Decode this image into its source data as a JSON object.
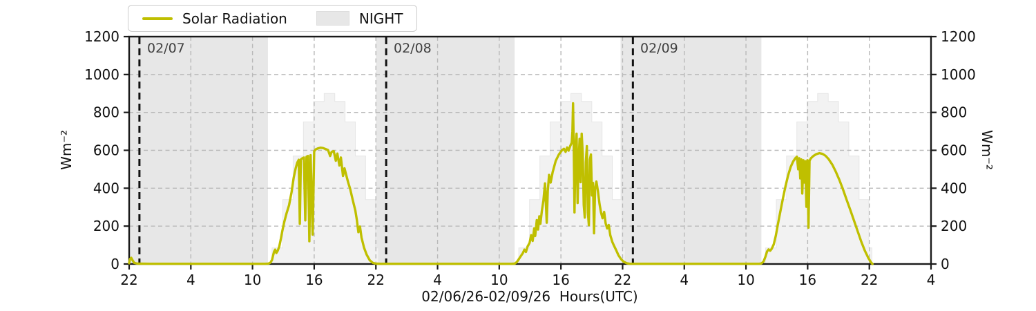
{
  "legend": {
    "solar_label": "Solar Radiation",
    "night_label": "NIGHT"
  },
  "axes": {
    "left_label": "Wm⁻²",
    "right_label": "Wm⁻²",
    "x_label": "02/06/26-02/09/26  Hours(UTC)"
  },
  "colors": {
    "line": "#bfbf00",
    "night": "#e7e7e7",
    "clear_sky": "#f2f2f2",
    "clear_sky_edge": "#e6e6e6",
    "grid": "#b8b8b8",
    "date_line": "#111111",
    "spine": "#1a1a1a",
    "tick_text": "#111111",
    "day_label_text": "#3f3f3f"
  },
  "chart_data": {
    "type": "line",
    "title": "",
    "xlabel": "02/06/26-02/09/26  Hours(UTC)",
    "ylabel": "Wm⁻²",
    "legend_position": "top-left-above-axes",
    "grid": true,
    "x_axis": {
      "start": "22:00 UTC on 02/06/26",
      "total_hours": 78,
      "tick_step_hours": 6,
      "tick_labels": [
        "22",
        "4",
        "10",
        "16",
        "22",
        "4",
        "10",
        "16",
        "22",
        "4",
        "10",
        "16",
        "22",
        "4"
      ]
    },
    "y_axis": {
      "min": 0,
      "max": 1200,
      "ticks": [
        0,
        200,
        400,
        600,
        800,
        1000,
        1200
      ],
      "mirrored_right": true
    },
    "night_regions_hours": [
      [
        0,
        13.5
      ],
      [
        24.0,
        37.5
      ],
      [
        47.8,
        61.5
      ]
    ],
    "date_lines": [
      {
        "t": 1.0,
        "label": "02/07"
      },
      {
        "t": 25.0,
        "label": "02/08"
      },
      {
        "t": 49.0,
        "label": "02/09"
      }
    ],
    "clear_sky_steps": {
      "day_offsets": [
        0,
        24,
        48
      ],
      "edges_rel_hours": [
        13.9,
        14.95,
        15.95,
        16.95,
        17.95,
        18.97,
        20.0,
        21.0,
        22.0,
        23.0,
        23.95,
        24.25
      ],
      "values": [
        85,
        340,
        570,
        750,
        858,
        900,
        858,
        750,
        570,
        340,
        85
      ]
    },
    "series": [
      {
        "name": "Solar Radiation",
        "color": "#bfbf00",
        "units": "Wm⁻²",
        "points": [
          [
            0,
            4
          ],
          [
            0.08,
            26
          ],
          [
            0.2,
            33
          ],
          [
            0.35,
            18
          ],
          [
            0.5,
            6
          ],
          [
            0.8,
            2
          ],
          [
            2,
            1
          ],
          [
            4,
            1
          ],
          [
            6,
            1
          ],
          [
            8,
            1
          ],
          [
            10,
            1
          ],
          [
            12,
            1
          ],
          [
            13.2,
            1
          ],
          [
            13.55,
            2
          ],
          [
            13.75,
            8
          ],
          [
            13.9,
            22
          ],
          [
            14.0,
            45
          ],
          [
            14.1,
            66
          ],
          [
            14.2,
            76
          ],
          [
            14.32,
            58
          ],
          [
            14.45,
            70
          ],
          [
            14.6,
            92
          ],
          [
            14.75,
            130
          ],
          [
            14.9,
            175
          ],
          [
            15.1,
            225
          ],
          [
            15.3,
            265
          ],
          [
            15.55,
            310
          ],
          [
            15.8,
            380
          ],
          [
            16.0,
            455
          ],
          [
            16.2,
            505
          ],
          [
            16.35,
            535
          ],
          [
            16.5,
            550
          ],
          [
            16.6,
            212
          ],
          [
            16.7,
            552
          ],
          [
            16.85,
            558
          ],
          [
            17.0,
            562
          ],
          [
            17.13,
            230
          ],
          [
            17.25,
            566
          ],
          [
            17.4,
            570
          ],
          [
            17.53,
            120
          ],
          [
            17.65,
            574
          ],
          [
            17.85,
            155
          ],
          [
            18.0,
            595
          ],
          [
            18.15,
            605
          ],
          [
            18.35,
            610
          ],
          [
            18.6,
            614
          ],
          [
            18.85,
            612
          ],
          [
            19.1,
            607
          ],
          [
            19.35,
            601
          ],
          [
            19.55,
            570
          ],
          [
            19.7,
            592
          ],
          [
            19.9,
            596
          ],
          [
            20.1,
            545
          ],
          [
            20.25,
            583
          ],
          [
            20.45,
            520
          ],
          [
            20.6,
            562
          ],
          [
            20.8,
            465
          ],
          [
            20.95,
            505
          ],
          [
            21.1,
            472
          ],
          [
            21.3,
            432
          ],
          [
            21.5,
            396
          ],
          [
            21.75,
            338
          ],
          [
            22.0,
            282
          ],
          [
            22.15,
            232
          ],
          [
            22.3,
            168
          ],
          [
            22.45,
            198
          ],
          [
            22.6,
            140
          ],
          [
            22.85,
            86
          ],
          [
            23.1,
            50
          ],
          [
            23.4,
            20
          ],
          [
            23.7,
            6
          ],
          [
            24.0,
            2
          ],
          [
            24.5,
            1
          ],
          [
            26,
            1
          ],
          [
            28,
            1
          ],
          [
            30,
            1
          ],
          [
            32,
            1
          ],
          [
            34,
            1
          ],
          [
            36,
            1
          ],
          [
            37.2,
            1
          ],
          [
            37.5,
            2
          ],
          [
            37.7,
            10
          ],
          [
            37.9,
            25
          ],
          [
            38.1,
            42
          ],
          [
            38.3,
            58
          ],
          [
            38.45,
            76
          ],
          [
            38.6,
            64
          ],
          [
            38.75,
            92
          ],
          [
            38.95,
            112
          ],
          [
            39.1,
            152
          ],
          [
            39.25,
            122
          ],
          [
            39.4,
            188
          ],
          [
            39.5,
            148
          ],
          [
            39.65,
            232
          ],
          [
            39.78,
            182
          ],
          [
            39.9,
            252
          ],
          [
            40.0,
            212
          ],
          [
            40.15,
            282
          ],
          [
            40.3,
            335
          ],
          [
            40.45,
            425
          ],
          [
            40.55,
            302
          ],
          [
            40.62,
            218
          ],
          [
            40.72,
            385
          ],
          [
            40.85,
            470
          ],
          [
            41.0,
            430
          ],
          [
            41.2,
            485
          ],
          [
            41.5,
            545
          ],
          [
            41.8,
            578
          ],
          [
            42.1,
            600
          ],
          [
            42.3,
            608
          ],
          [
            42.45,
            592
          ],
          [
            42.6,
            615
          ],
          [
            42.75,
            598
          ],
          [
            42.9,
            622
          ],
          [
            43.05,
            640
          ],
          [
            43.12,
            700
          ],
          [
            43.18,
            848
          ],
          [
            43.25,
            600
          ],
          [
            43.32,
            272
          ],
          [
            43.42,
            618
          ],
          [
            43.52,
            688
          ],
          [
            43.62,
            322
          ],
          [
            43.72,
            545
          ],
          [
            43.82,
            660
          ],
          [
            43.92,
            432
          ],
          [
            44.02,
            688
          ],
          [
            44.12,
            582
          ],
          [
            44.22,
            312
          ],
          [
            44.32,
            245
          ],
          [
            44.42,
            538
          ],
          [
            44.52,
            622
          ],
          [
            44.62,
            272
          ],
          [
            44.72,
            205
          ],
          [
            44.82,
            552
          ],
          [
            44.92,
            578
          ],
          [
            45.02,
            362
          ],
          [
            45.12,
            428
          ],
          [
            45.22,
            162
          ],
          [
            45.32,
            395
          ],
          [
            45.45,
            435
          ],
          [
            45.6,
            385
          ],
          [
            45.75,
            318
          ],
          [
            45.9,
            272
          ],
          [
            46.05,
            242
          ],
          [
            46.2,
            275
          ],
          [
            46.35,
            215
          ],
          [
            46.5,
            188
          ],
          [
            46.65,
            206
          ],
          [
            46.8,
            152
          ],
          [
            47.0,
            116
          ],
          [
            47.2,
            92
          ],
          [
            47.4,
            70
          ],
          [
            47.6,
            46
          ],
          [
            47.85,
            26
          ],
          [
            48.1,
            12
          ],
          [
            48.4,
            4
          ],
          [
            48.7,
            1
          ],
          [
            49.5,
            1
          ],
          [
            51,
            1
          ],
          [
            53,
            1
          ],
          [
            55,
            1
          ],
          [
            57,
            1
          ],
          [
            59,
            1
          ],
          [
            60.8,
            1
          ],
          [
            61.3,
            1
          ],
          [
            61.5,
            3
          ],
          [
            61.7,
            12
          ],
          [
            61.9,
            40
          ],
          [
            62.05,
            66
          ],
          [
            62.2,
            77
          ],
          [
            62.35,
            70
          ],
          [
            62.5,
            80
          ],
          [
            62.7,
            104
          ],
          [
            62.9,
            148
          ],
          [
            63.1,
            208
          ],
          [
            63.35,
            278
          ],
          [
            63.6,
            348
          ],
          [
            63.85,
            412
          ],
          [
            64.1,
            468
          ],
          [
            64.35,
            512
          ],
          [
            64.6,
            542
          ],
          [
            64.8,
            558
          ],
          [
            64.95,
            566
          ],
          [
            65.08,
            500
          ],
          [
            65.18,
            558
          ],
          [
            65.28,
            452
          ],
          [
            65.38,
            552
          ],
          [
            65.48,
            372
          ],
          [
            65.58,
            548
          ],
          [
            65.68,
            430
          ],
          [
            65.78,
            542
          ],
          [
            65.88,
            302
          ],
          [
            65.98,
            548
          ],
          [
            66.08,
            192
          ],
          [
            66.18,
            545
          ],
          [
            66.32,
            558
          ],
          [
            66.55,
            570
          ],
          [
            66.85,
            580
          ],
          [
            67.15,
            585
          ],
          [
            67.45,
            581
          ],
          [
            67.75,
            571
          ],
          [
            68.05,
            553
          ],
          [
            68.4,
            524
          ],
          [
            68.75,
            486
          ],
          [
            69.1,
            442
          ],
          [
            69.45,
            392
          ],
          [
            69.8,
            338
          ],
          [
            70.15,
            285
          ],
          [
            70.5,
            230
          ],
          [
            70.85,
            175
          ],
          [
            71.2,
            120
          ],
          [
            71.55,
            72
          ],
          [
            71.9,
            32
          ],
          [
            72.15,
            10
          ],
          [
            72.3,
            0
          ]
        ]
      }
    ]
  }
}
